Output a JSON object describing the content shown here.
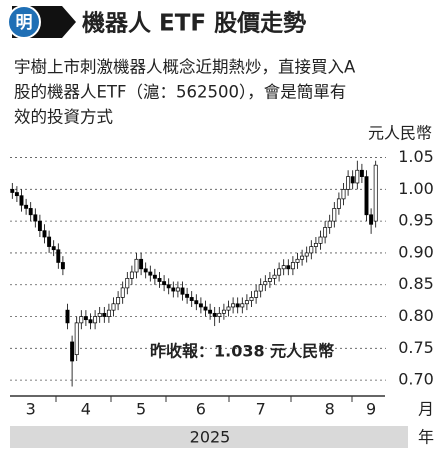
{
  "header": {
    "icon": "明",
    "title": "機器人 ETF 股價走勢"
  },
  "description": {
    "lines": [
      "宇樹上市刺激機器人概念近期熱炒，直接買入A",
      "股的機器人ETF（滬：562500），會是簡單有",
      "效的投資方式"
    ]
  },
  "chart_data": {
    "type": "candlestick",
    "y_label": "元人民幣",
    "annotation": "昨收報：1.038 元人民幣",
    "x_unit": "月",
    "year": "2025",
    "year_unit": "年",
    "categories": [
      null,
      null,
      null,
      null,
      "3",
      null,
      null,
      null,
      null,
      null,
      null,
      null,
      null,
      null,
      null,
      null,
      "4",
      null,
      null,
      null,
      null,
      null,
      null,
      null,
      null,
      null,
      null,
      null,
      "5",
      null,
      null,
      null,
      null,
      null,
      null,
      null,
      null,
      null,
      null,
      null,
      null,
      "6",
      null,
      null,
      null,
      null,
      null,
      null,
      null,
      null,
      null,
      null,
      null,
      null,
      "7",
      null,
      null,
      null,
      null,
      null,
      null,
      null,
      null,
      null,
      null,
      null,
      null,
      null,
      null,
      "8",
      null,
      null,
      null,
      null,
      null,
      null,
      null,
      null,
      "9",
      null
    ],
    "open": [
      1.0,
      0.995,
      0.99,
      0.975,
      0.97,
      0.96,
      0.95,
      0.935,
      0.925,
      0.91,
      0.905,
      0.885,
      0.81,
      0.76,
      0.74,
      0.79,
      0.8,
      0.795,
      0.79,
      0.8,
      0.805,
      0.8,
      0.81,
      0.82,
      0.83,
      0.845,
      0.86,
      0.87,
      0.89,
      0.875,
      0.87,
      0.865,
      0.86,
      0.855,
      0.85,
      0.845,
      0.84,
      0.845,
      0.835,
      0.83,
      0.825,
      0.82,
      0.815,
      0.81,
      0.805,
      0.8,
      0.805,
      0.81,
      0.815,
      0.82,
      0.815,
      0.82,
      0.825,
      0.83,
      0.84,
      0.85,
      0.855,
      0.86,
      0.865,
      0.875,
      0.88,
      0.875,
      0.885,
      0.89,
      0.895,
      0.9,
      0.91,
      0.915,
      0.925,
      0.94,
      0.95,
      0.97,
      0.985,
      1.0,
      1.02,
      1.01,
      1.03,
      1.02,
      0.96,
      0.95
    ],
    "high": [
      1.01,
      1.005,
      1.0,
      0.985,
      0.98,
      0.97,
      0.96,
      0.945,
      0.935,
      0.92,
      0.915,
      0.895,
      0.82,
      0.77,
      0.8,
      0.81,
      0.81,
      0.805,
      0.81,
      0.815,
      0.815,
      0.82,
      0.83,
      0.84,
      0.855,
      0.87,
      0.88,
      0.9,
      0.9,
      0.885,
      0.88,
      0.875,
      0.87,
      0.865,
      0.86,
      0.855,
      0.855,
      0.855,
      0.845,
      0.84,
      0.835,
      0.83,
      0.825,
      0.82,
      0.815,
      0.815,
      0.82,
      0.825,
      0.83,
      0.83,
      0.83,
      0.835,
      0.84,
      0.85,
      0.86,
      0.865,
      0.87,
      0.875,
      0.885,
      0.89,
      0.89,
      0.895,
      0.9,
      0.905,
      0.91,
      0.92,
      0.925,
      0.935,
      0.95,
      0.96,
      0.98,
      0.995,
      1.01,
      1.03,
      1.03,
      1.045,
      1.04,
      1.03,
      0.97,
      1.045
    ],
    "low": [
      0.985,
      0.98,
      0.965,
      0.96,
      0.95,
      0.94,
      0.925,
      0.915,
      0.9,
      0.895,
      0.875,
      0.865,
      0.78,
      0.69,
      0.73,
      0.78,
      0.785,
      0.78,
      0.78,
      0.79,
      0.79,
      0.79,
      0.8,
      0.81,
      0.82,
      0.835,
      0.85,
      0.86,
      0.865,
      0.86,
      0.855,
      0.85,
      0.845,
      0.84,
      0.835,
      0.83,
      0.83,
      0.825,
      0.82,
      0.815,
      0.81,
      0.805,
      0.8,
      0.795,
      0.785,
      0.79,
      0.795,
      0.8,
      0.805,
      0.805,
      0.805,
      0.81,
      0.815,
      0.82,
      0.83,
      0.84,
      0.845,
      0.85,
      0.855,
      0.865,
      0.865,
      0.865,
      0.875,
      0.88,
      0.885,
      0.89,
      0.9,
      0.905,
      0.915,
      0.93,
      0.94,
      0.96,
      0.975,
      0.99,
      1.0,
      1.0,
      1.01,
      0.95,
      0.93,
      0.94
    ],
    "close": [
      0.995,
      0.99,
      0.975,
      0.97,
      0.96,
      0.95,
      0.935,
      0.925,
      0.91,
      0.905,
      0.885,
      0.875,
      0.79,
      0.73,
      0.79,
      0.8,
      0.795,
      0.79,
      0.8,
      0.805,
      0.8,
      0.81,
      0.82,
      0.83,
      0.845,
      0.86,
      0.87,
      0.89,
      0.875,
      0.87,
      0.865,
      0.86,
      0.855,
      0.85,
      0.845,
      0.84,
      0.845,
      0.835,
      0.83,
      0.825,
      0.82,
      0.815,
      0.81,
      0.805,
      0.8,
      0.805,
      0.81,
      0.815,
      0.82,
      0.815,
      0.82,
      0.825,
      0.83,
      0.84,
      0.85,
      0.855,
      0.86,
      0.865,
      0.875,
      0.88,
      0.875,
      0.885,
      0.89,
      0.895,
      0.9,
      0.91,
      0.915,
      0.925,
      0.94,
      0.95,
      0.97,
      0.985,
      1.0,
      1.02,
      1.01,
      1.03,
      1.02,
      0.96,
      0.945,
      1.038
    ],
    "ylim": [
      0.675,
      1.065
    ],
    "yticks": [
      {
        "value": 0.7,
        "label": "0.70"
      },
      0.75,
      {
        "value": 0.8,
        "label": "0.80"
      },
      0.85,
      {
        "value": 0.9,
        "label": "0.90"
      },
      0.95,
      {
        "value": 1,
        "label": "1.00"
      },
      1.05
    ],
    "grid": true,
    "up_color": "#ffffff",
    "down_color": "#000000"
  }
}
